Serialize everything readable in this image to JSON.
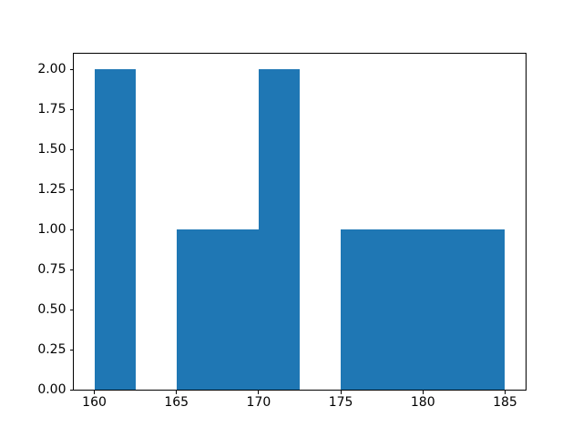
{
  "figure": {
    "background_color": "#ffffff",
    "frame_color": "#000000",
    "tick_color": "#000000"
  },
  "chart_data": {
    "type": "bar",
    "subtype": "histogram",
    "title": "",
    "xlabel": "",
    "ylabel": "",
    "bar_color": "#1f77b4",
    "grid": false,
    "legend": null,
    "bin_edges": [
      160,
      162.5,
      165,
      167.5,
      170,
      172.5,
      175,
      177.5,
      180,
      182.5,
      185
    ],
    "counts": [
      2,
      0,
      1,
      1,
      2,
      0,
      1,
      1,
      1,
      1
    ],
    "xlim": [
      158.75,
      186.25
    ],
    "ylim": [
      0,
      2.1
    ],
    "x_tick_values": [
      160,
      165,
      170,
      175,
      180,
      185
    ],
    "x_tick_labels": [
      "160",
      "165",
      "170",
      "175",
      "180",
      "185"
    ],
    "y_tick_values": [
      0,
      0.25,
      0.5,
      0.75,
      1,
      1.25,
      1.5,
      1.75,
      2
    ],
    "y_tick_labels": [
      "0.00",
      "0.25",
      "0.50",
      "0.75",
      "1.00",
      "1.25",
      "1.50",
      "1.75",
      "2.00"
    ]
  }
}
